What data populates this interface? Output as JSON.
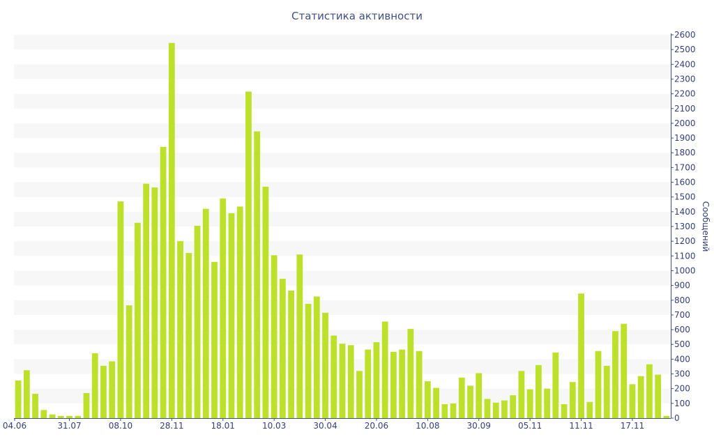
{
  "chart_data": {
    "type": "bar",
    "title": "Статистика активности",
    "xlabel": "",
    "ylabel": "Сообщений",
    "y_axis_side": "right",
    "ylim": [
      0,
      2600
    ],
    "y_ticks": [
      0,
      100,
      200,
      300,
      400,
      500,
      600,
      700,
      800,
      900,
      1000,
      1100,
      1200,
      1300,
      1400,
      1500,
      1600,
      1700,
      1800,
      1900,
      2000,
      2100,
      2200,
      2300,
      2400,
      2500,
      2600
    ],
    "grid": "alternating horizontal bands",
    "x_tick_labels": [
      {
        "label": "04.06",
        "index": 0
      },
      {
        "label": "31.07",
        "index": 6
      },
      {
        "label": "08.10",
        "index": 12
      },
      {
        "label": "28.11",
        "index": 18
      },
      {
        "label": "18.01",
        "index": 24
      },
      {
        "label": "10.03",
        "index": 30
      },
      {
        "label": "30.04",
        "index": 36
      },
      {
        "label": "20.06",
        "index": 42
      },
      {
        "label": "10.08",
        "index": 48
      },
      {
        "label": "30.09",
        "index": 54
      },
      {
        "label": "05.11",
        "index": 60
      },
      {
        "label": "11.11",
        "index": 66
      },
      {
        "label": "17.11",
        "index": 72
      }
    ],
    "values": [
      255,
      325,
      165,
      55,
      25,
      15,
      15,
      15,
      170,
      440,
      355,
      385,
      1470,
      765,
      1325,
      1590,
      1565,
      1840,
      2545,
      1200,
      1120,
      1305,
      1420,
      1060,
      1490,
      1390,
      1435,
      2215,
      1945,
      1570,
      1105,
      945,
      865,
      1110,
      775,
      825,
      715,
      560,
      505,
      495,
      320,
      465,
      515,
      655,
      450,
      465,
      605,
      455,
      250,
      205,
      95,
      100,
      275,
      220,
      305,
      130,
      105,
      120,
      155,
      320,
      195,
      360,
      200,
      445,
      95,
      245,
      845,
      110,
      455,
      355,
      590,
      640,
      230,
      285,
      365,
      295,
      15
    ],
    "bar_color": "#bde12b"
  }
}
